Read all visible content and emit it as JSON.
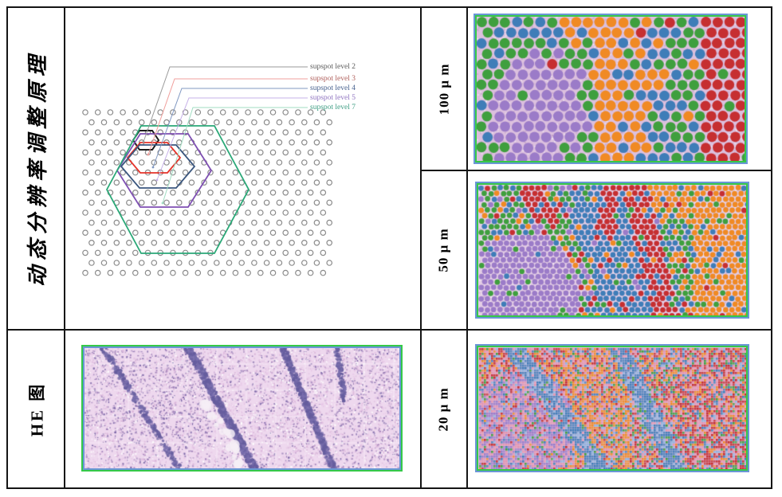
{
  "table": {
    "left_rows": [
      {
        "label": "动态分辨率调整原理"
      },
      {
        "label": "HE 图"
      }
    ],
    "right_rows": [
      {
        "label": "100 μ m"
      },
      {
        "label": "50 μ m"
      },
      {
        "label": "20 μ m"
      }
    ]
  },
  "diagram": {
    "legend": [
      {
        "label": "supspot level 2",
        "line_color": "#9a9a9a",
        "hex_color": "#1c1c1c",
        "text_color": "#5a5a5a"
      },
      {
        "label": "supspot level 3",
        "line_color": "#f09f9c",
        "hex_color": "#e5332a",
        "text_color": "#b0605c"
      },
      {
        "label": "supspot level 4",
        "line_color": "#8098c2",
        "hex_color": "#3a567e",
        "text_color": "#46608e"
      },
      {
        "label": "supspot level 5",
        "line_color": "#c6b0e8",
        "hex_color": "#7e4fb2",
        "text_color": "#8f74c0"
      },
      {
        "label": "supspot level 7",
        "line_color": "#a0ddc2",
        "hex_color": "#2aa877",
        "text_color": "#3f9e84"
      }
    ],
    "spot_outline_color": "#8a8a8a"
  },
  "panels": {
    "border_outer_blue": "#6b96d6",
    "border_inner_green": "#35c948",
    "cluster_colors": {
      "green": "#3f9f3e",
      "purple": "#9b7bc8",
      "blue": "#3f7db8",
      "orange": "#f08a24",
      "red": "#c62f31",
      "pink": "#e493ae",
      "lightblue": "#8fb3de"
    },
    "background_100um": "#dcc0de",
    "background_50um": "#e3cde5",
    "he_background": "#eed8ee"
  }
}
